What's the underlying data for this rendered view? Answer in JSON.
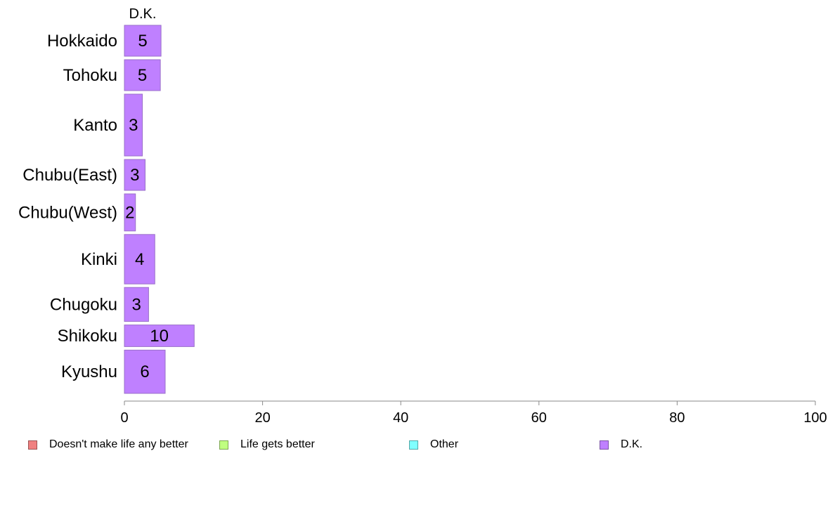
{
  "chart_data": {
    "type": "bar",
    "orientation": "horizontal",
    "stacked": true,
    "category_axis_title": "D.K.",
    "categories": [
      "Hokkaido",
      "Tohoku",
      "Kanto",
      "Chubu(East)",
      "Chubu(West)",
      "Kinki",
      "Chugoku",
      "Shikoku",
      "Kyushu"
    ],
    "series": [
      {
        "name": "Doesn't make life any better",
        "color": "#f08080",
        "values": [
          0,
          0,
          0,
          0,
          0,
          0,
          0,
          0,
          0
        ]
      },
      {
        "name": "Life gets better",
        "color": "#c0ff80",
        "values": [
          0,
          0,
          0,
          0,
          0,
          0,
          0,
          0,
          0
        ]
      },
      {
        "name": "Other",
        "color": "#80ffff",
        "values": [
          0,
          0,
          0,
          0,
          0,
          0,
          0,
          0,
          0
        ]
      },
      {
        "name": "D.K.",
        "color": "#bf80ff",
        "values": [
          5.3,
          5.2,
          2.6,
          3.0,
          1.6,
          4.4,
          3.5,
          10.1,
          5.9
        ],
        "labels": [
          "5",
          "5",
          "3",
          "3",
          "2",
          "4",
          "3",
          "10",
          "6"
        ]
      }
    ],
    "row_weights": [
      1,
      1,
      2,
      1,
      1.2,
      1.6,
      1.1,
      0.7,
      1.4
    ],
    "xlim": [
      0,
      100
    ],
    "xticks": [
      0,
      20,
      40,
      60,
      80,
      100
    ],
    "grid": false,
    "legend_position": "bottom"
  }
}
